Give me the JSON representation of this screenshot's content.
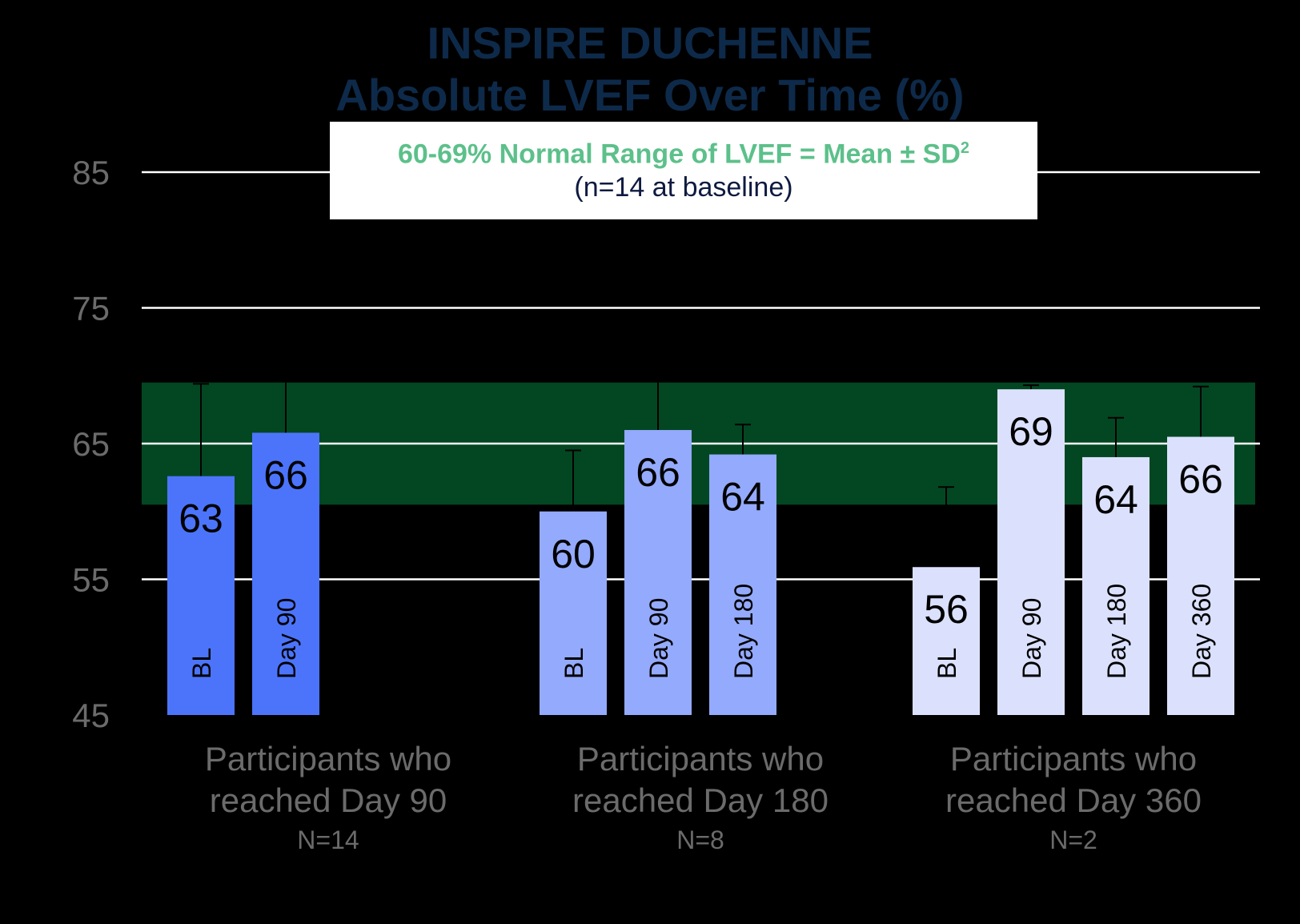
{
  "chart_data": {
    "type": "bar",
    "title": "INSPIRE DUCHENNE",
    "subtitle": "Absolute LVEF Over Time (%)",
    "y_axis": {
      "min": 45,
      "max": 85,
      "ticks": [
        "45",
        "55",
        "65",
        "75",
        "85"
      ]
    },
    "grid": true,
    "normal_range": {
      "low": 60.5,
      "high": 69.5,
      "color": "#024722"
    },
    "legend": {
      "range_text": "60-69% Normal Range of LVEF = Mean ± SD",
      "range_superscript": "2",
      "n_text": "(n=14 at baseline)",
      "placement": "top-center",
      "range_color": "#5cc08a"
    },
    "groups": [
      {
        "label_line1": "Participants who",
        "label_line2": "reached Day 90",
        "n_label": "N=14",
        "color": "#4c74fb",
        "bars": [
          {
            "label": "BL",
            "value": 62.6,
            "value_label": "63",
            "error_upper": 69.4
          },
          {
            "label": "Day 90",
            "value": 65.8,
            "value_label": "66",
            "error_upper": 70.0
          }
        ]
      },
      {
        "label_line1": "Participants who",
        "label_line2": "reached Day 180",
        "n_label": "N=8",
        "color": "#94aafd",
        "bars": [
          {
            "label": "BL",
            "value": 60.0,
            "value_label": "60",
            "error_upper": 64.5
          },
          {
            "label": "Day 90",
            "value": 66.0,
            "value_label": "66",
            "error_upper": 70.0
          },
          {
            "label": "Day 180",
            "value": 64.2,
            "value_label": "64",
            "error_upper": 66.4
          }
        ]
      },
      {
        "label_line1": "Participants who",
        "label_line2": "reached Day 360",
        "n_label": "N=2",
        "color": "#dbe1fd",
        "bars": [
          {
            "label": "BL",
            "value": 55.9,
            "value_label": "56",
            "error_upper": 61.8
          },
          {
            "label": "Day 90",
            "value": 69.0,
            "value_label": "69",
            "error_upper": 69.3
          },
          {
            "label": "Day 180",
            "value": 64.0,
            "value_label": "64",
            "error_upper": 66.9
          },
          {
            "label": "Day 360",
            "value": 65.5,
            "value_label": "66",
            "error_upper": 69.2
          }
        ]
      }
    ]
  }
}
